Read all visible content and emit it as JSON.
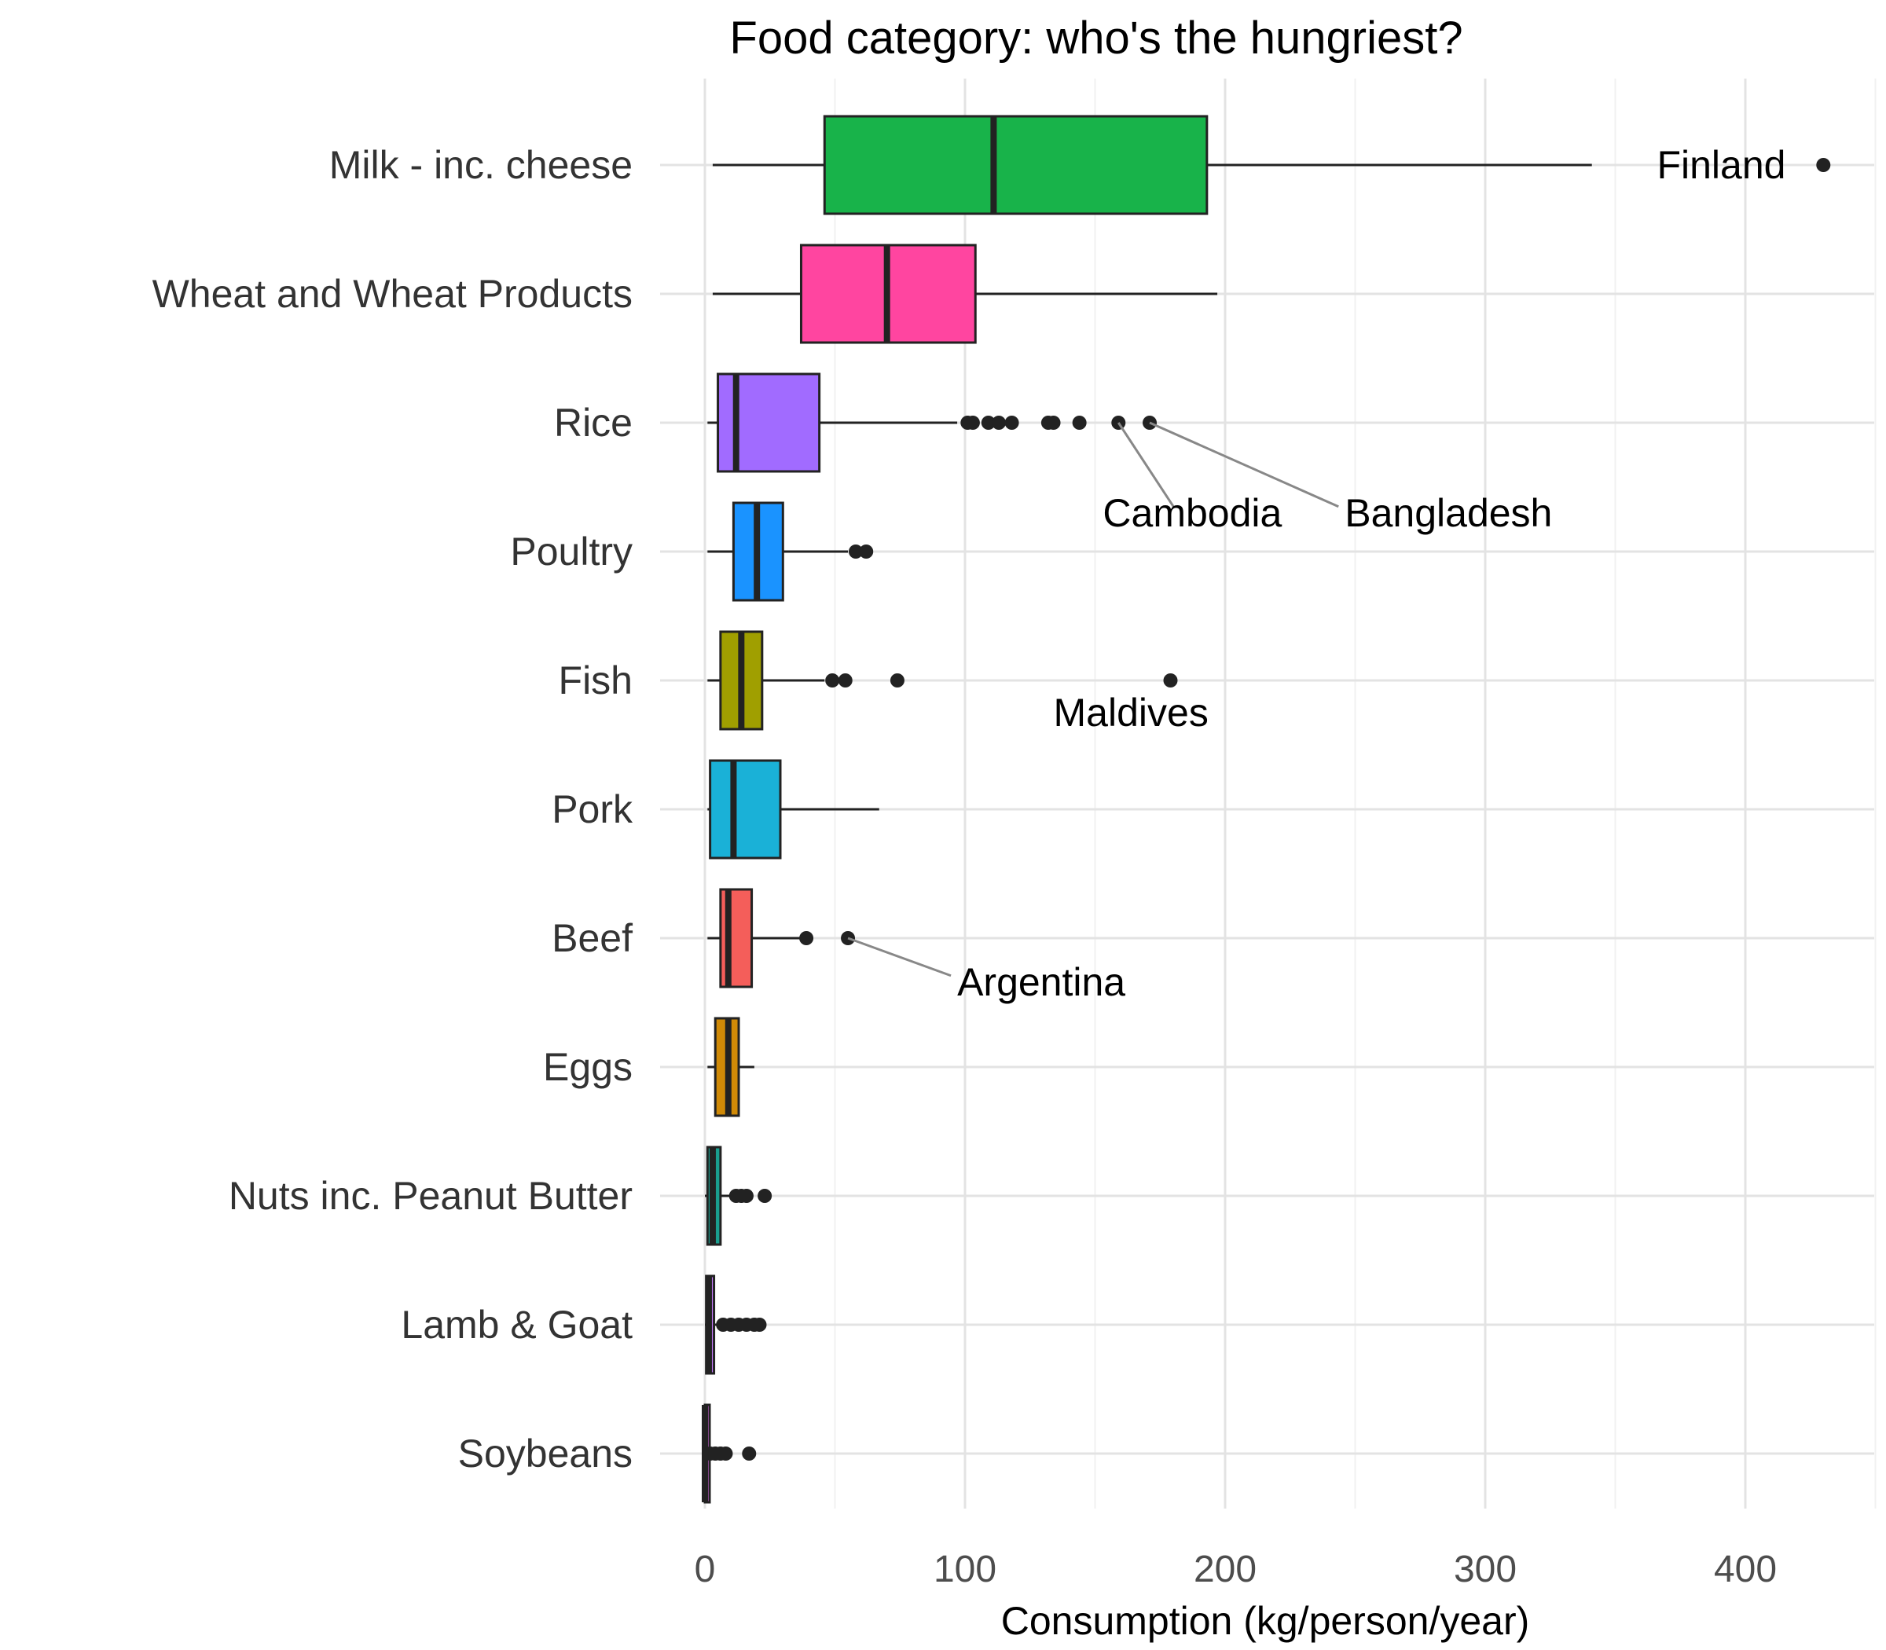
{
  "chart_data": {
    "type": "boxplot",
    "orientation": "horizontal",
    "title": "Food category: who's the hungriest?",
    "xlabel": "Consumption (kg/person/year)",
    "ylabel": "",
    "xlim": [
      -10,
      450
    ],
    "xticks": [
      0,
      100,
      200,
      300,
      400
    ],
    "xtick_labels": [
      "0",
      "100",
      "200",
      "300",
      "400"
    ],
    "grid": true,
    "legend": "none",
    "categories": [
      "Milk - inc. cheese",
      "Wheat and Wheat Products",
      "Rice",
      "Poultry",
      "Fish",
      "Pork",
      "Beef",
      "Eggs",
      "Nuts inc. Peanut Butter",
      "Lamb & Goat",
      "Soybeans"
    ],
    "boxes": [
      {
        "category": "Milk - inc. cheese",
        "color": "#18B34A",
        "whisker_low": 3,
        "q1": 46,
        "median": 111,
        "q3": 193,
        "whisker_high": 341,
        "outliers": [
          430
        ]
      },
      {
        "category": "Wheat and Wheat Products",
        "color": "#FF45A0",
        "whisker_low": 3,
        "q1": 37,
        "median": 70,
        "q3": 104,
        "whisker_high": 197,
        "outliers": []
      },
      {
        "category": "Rice",
        "color": "#A16BFF",
        "whisker_low": 1,
        "q1": 5,
        "median": 12,
        "q3": 44,
        "whisker_high": 97,
        "outliers": [
          101,
          103,
          109,
          113,
          118,
          132,
          134,
          144,
          159,
          171
        ]
      },
      {
        "category": "Poultry",
        "color": "#1A93FF",
        "whisker_low": 1,
        "q1": 11,
        "median": 20,
        "q3": 30,
        "whisker_high": 55,
        "outliers": [
          58,
          62
        ]
      },
      {
        "category": "Fish",
        "color": "#A09F00",
        "whisker_low": 1,
        "q1": 6,
        "median": 14,
        "q3": 22,
        "whisker_high": 46,
        "outliers": [
          49,
          54,
          74,
          179
        ]
      },
      {
        "category": "Pork",
        "color": "#1AB1D7",
        "whisker_low": 1,
        "q1": 2,
        "median": 11,
        "q3": 29,
        "whisker_high": 67,
        "outliers": []
      },
      {
        "category": "Beef",
        "color": "#F45E5A",
        "whisker_low": 1,
        "q1": 6,
        "median": 9,
        "q3": 18,
        "whisker_high": 37,
        "outliers": [
          39,
          55
        ]
      },
      {
        "category": "Eggs",
        "color": "#D08A07",
        "whisker_low": 1,
        "q1": 4,
        "median": 9,
        "q3": 13,
        "whisker_high": 19,
        "outliers": []
      },
      {
        "category": "Nuts inc. Peanut Butter",
        "color": "#1A9E8F",
        "whisker_low": 0,
        "q1": 1,
        "median": 3,
        "q3": 6,
        "whisker_high": 10,
        "outliers": [
          12,
          14,
          16,
          23
        ]
      },
      {
        "category": "Lamb & Goat",
        "color": "#C77CFF",
        "whisker_low": 0,
        "q1": 0.5,
        "median": 1.5,
        "q3": 3.5,
        "whisker_high": 6,
        "outliers": [
          7,
          10,
          13,
          16,
          19,
          21
        ]
      },
      {
        "category": "Soybeans",
        "color": "#E76BF3",
        "whisker_low": 0,
        "q1": 0,
        "median": 0,
        "q3": 0.5,
        "whisker_high": 1.5,
        "outliers": [
          2,
          4,
          6,
          8,
          17
        ]
      }
    ],
    "annotations": [
      {
        "text": "Finland",
        "category": "Milk - inc. cheese",
        "point_x": 430,
        "label_x": 366,
        "label_offset": 0,
        "anchor": "start",
        "leader": false
      },
      {
        "text": "Cambodia",
        "category": "Rice",
        "point_x": 159,
        "label_x": 153,
        "label_offset": 0.7,
        "anchor": "start",
        "leader": true
      },
      {
        "text": "Bangladesh",
        "category": "Rice",
        "point_x": 171,
        "label_x": 246,
        "label_offset": 0.7,
        "anchor": "start",
        "leader": true
      },
      {
        "text": "Maldives",
        "category": "Fish",
        "point_x": 179,
        "label_x": 134,
        "label_offset": 0.25,
        "anchor": "start",
        "leader": false
      },
      {
        "text": "Argentina",
        "category": "Beef",
        "point_x": 55,
        "label_x": 97,
        "label_offset": 0.34,
        "anchor": "start",
        "leader": true
      }
    ]
  }
}
